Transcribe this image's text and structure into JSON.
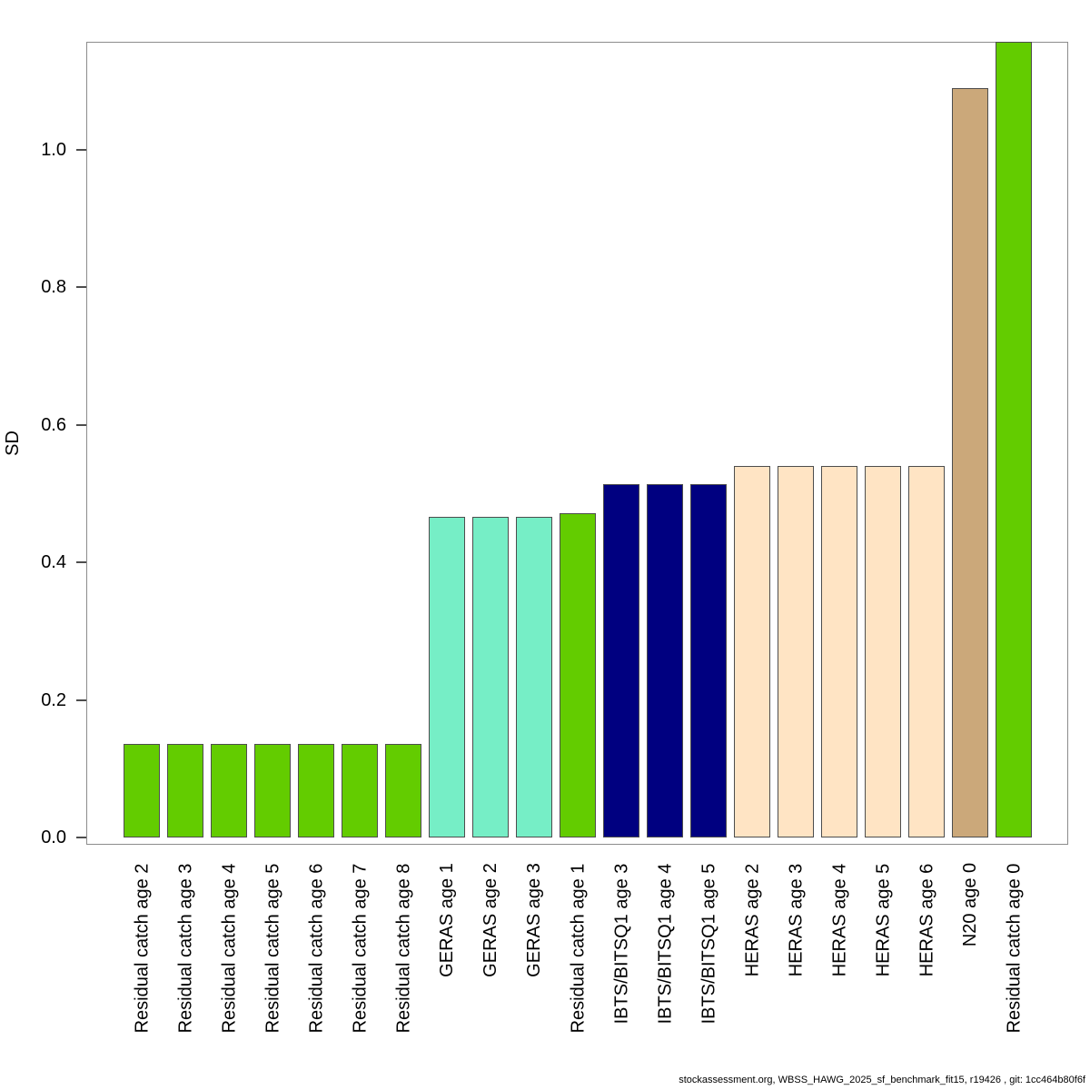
{
  "chart_data": {
    "type": "bar",
    "title": "",
    "xlabel": "",
    "ylabel": "SD",
    "ylim": [
      0,
      1.16
    ],
    "grid": false,
    "legend": "none",
    "ytick_labels": [
      "0.0",
      "0.2",
      "0.4",
      "0.6",
      "0.8",
      "1.0"
    ],
    "ytick_values": [
      0.0,
      0.2,
      0.4,
      0.6,
      0.8,
      1.0
    ],
    "categories": [
      "Residual catch age 2",
      "Residual catch age 3",
      "Residual catch age 4",
      "Residual catch age 5",
      "Residual catch age 6",
      "Residual catch age 7",
      "Residual catch age 8",
      "GERAS age 1",
      "GERAS age 2",
      "GERAS age 3",
      "Residual catch age 1",
      "IBTS/BITSQ1 age 3",
      "IBTS/BITSQ1 age 4",
      "IBTS/BITSQ1 age 5",
      "HERAS age 2",
      "HERAS age 3",
      "HERAS age 4",
      "HERAS age 5",
      "HERAS age 6",
      "N20 age 0",
      "Residual catch age 0"
    ],
    "values": [
      0.136,
      0.136,
      0.136,
      0.136,
      0.136,
      0.136,
      0.136,
      0.466,
      0.466,
      0.466,
      0.471,
      0.514,
      0.514,
      0.514,
      0.54,
      0.54,
      0.54,
      0.54,
      0.54,
      1.09,
      1.157
    ],
    "bar_colors": [
      "#63CC00",
      "#63CC00",
      "#63CC00",
      "#63CC00",
      "#63CC00",
      "#63CC00",
      "#63CC00",
      "#76EEC6",
      "#76EEC6",
      "#76EEC6",
      "#63CC00",
      "#000080",
      "#000080",
      "#000080",
      "#FFE4C4",
      "#FFE4C4",
      "#FFE4C4",
      "#FFE4C4",
      "#FFE4C4",
      "#CBA87A",
      "#63CC00"
    ],
    "group_color_key": {
      "Residual catch": "#63CC00",
      "GERAS": "#76EEC6",
      "IBTS/BITSQ1": "#000080",
      "HERAS": "#FFE4C4",
      "N20": "#CBA87A"
    }
  },
  "footer": {
    "credit": "stockassessment.org, WBSS_HAWG_2025_sf_benchmark_fit15, r19426 , git: 1cc464b80f6f"
  }
}
